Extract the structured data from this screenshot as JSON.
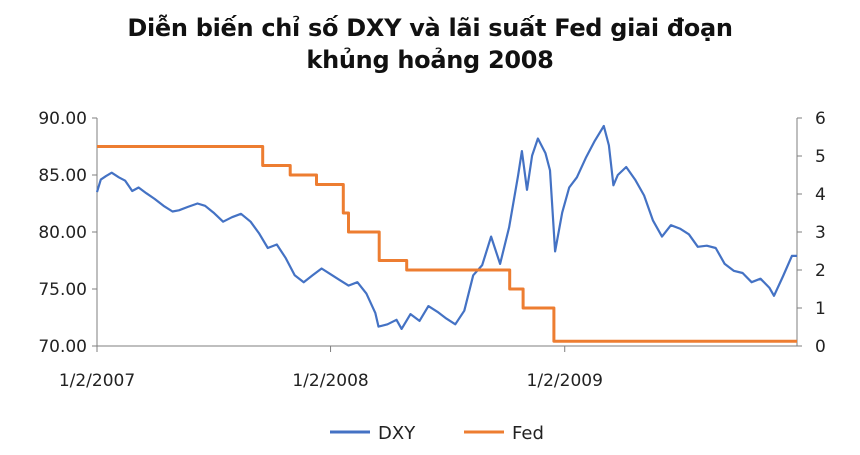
{
  "chart_data": {
    "type": "line",
    "title_line1": "Diễn biến chỉ số DXY và lãi suất Fed giai đoạn",
    "title_line2": "khủng hoảng 2008",
    "x_tick_labels": [
      "1/2/2007",
      "1/2/2008",
      "1/2/2009"
    ],
    "x_range": [
      "2007-01-02",
      "2009-12-31"
    ],
    "y_left": {
      "ticks": [
        "70.00",
        "75.00",
        "80.00",
        "85.00",
        "90.00"
      ],
      "range": [
        70,
        90
      ]
    },
    "y_right": {
      "ticks": [
        "0",
        "1",
        "2",
        "3",
        "4",
        "5",
        "6"
      ],
      "range": [
        0,
        6
      ]
    },
    "grid": false,
    "legend_position": "bottom",
    "series": [
      {
        "name": "DXY",
        "axis": "left",
        "color": "#4472C4",
        "points": [
          [
            "2007-01-02",
            83.5
          ],
          [
            "2007-01-08",
            84.6
          ],
          [
            "2007-01-16",
            84.9
          ],
          [
            "2007-01-25",
            85.2
          ],
          [
            "2007-02-05",
            84.8
          ],
          [
            "2007-02-15",
            84.5
          ],
          [
            "2007-02-26",
            83.6
          ],
          [
            "2007-03-08",
            83.9
          ],
          [
            "2007-03-20",
            83.4
          ],
          [
            "2007-04-02",
            82.9
          ],
          [
            "2007-04-16",
            82.3
          ],
          [
            "2007-04-30",
            81.8
          ],
          [
            "2007-05-10",
            81.9
          ],
          [
            "2007-05-24",
            82.2
          ],
          [
            "2007-06-08",
            82.5
          ],
          [
            "2007-06-20",
            82.3
          ],
          [
            "2007-07-03",
            81.7
          ],
          [
            "2007-07-18",
            80.9
          ],
          [
            "2007-08-01",
            81.3
          ],
          [
            "2007-08-15",
            81.6
          ],
          [
            "2007-08-30",
            80.9
          ],
          [
            "2007-09-12",
            79.9
          ],
          [
            "2007-09-26",
            78.6
          ],
          [
            "2007-10-10",
            78.9
          ],
          [
            "2007-10-24",
            77.7
          ],
          [
            "2007-11-07",
            76.2
          ],
          [
            "2007-11-21",
            75.6
          ],
          [
            "2007-12-05",
            76.2
          ],
          [
            "2007-12-19",
            76.8
          ],
          [
            "2008-01-02",
            76.3
          ],
          [
            "2008-01-16",
            75.8
          ],
          [
            "2008-01-30",
            75.3
          ],
          [
            "2008-02-13",
            75.6
          ],
          [
            "2008-02-27",
            74.6
          ],
          [
            "2008-03-12",
            72.9
          ],
          [
            "2008-03-17",
            71.7
          ],
          [
            "2008-03-31",
            71.9
          ],
          [
            "2008-04-14",
            72.3
          ],
          [
            "2008-04-22",
            71.5
          ],
          [
            "2008-05-06",
            72.8
          ],
          [
            "2008-05-20",
            72.2
          ],
          [
            "2008-06-03",
            73.5
          ],
          [
            "2008-06-17",
            73.0
          ],
          [
            "2008-07-01",
            72.4
          ],
          [
            "2008-07-15",
            71.9
          ],
          [
            "2008-07-29",
            73.1
          ],
          [
            "2008-08-12",
            76.2
          ],
          [
            "2008-08-26",
            77.1
          ],
          [
            "2008-09-09",
            79.6
          ],
          [
            "2008-09-23",
            77.2
          ],
          [
            "2008-10-07",
            80.4
          ],
          [
            "2008-10-21",
            84.9
          ],
          [
            "2008-10-27",
            87.1
          ],
          [
            "2008-11-04",
            83.7
          ],
          [
            "2008-11-12",
            86.7
          ],
          [
            "2008-11-21",
            88.2
          ],
          [
            "2008-12-03",
            86.9
          ],
          [
            "2008-12-10",
            85.4
          ],
          [
            "2008-12-18",
            78.3
          ],
          [
            "2008-12-29",
            81.7
          ],
          [
            "2009-01-09",
            83.9
          ],
          [
            "2009-01-21",
            84.8
          ],
          [
            "2009-02-04",
            86.5
          ],
          [
            "2009-02-18",
            88.0
          ],
          [
            "2009-03-04",
            89.3
          ],
          [
            "2009-03-12",
            87.6
          ],
          [
            "2009-03-19",
            84.1
          ],
          [
            "2009-03-26",
            85.0
          ],
          [
            "2009-04-08",
            85.7
          ],
          [
            "2009-04-22",
            84.6
          ],
          [
            "2009-05-06",
            83.2
          ],
          [
            "2009-05-20",
            81.0
          ],
          [
            "2009-06-03",
            79.6
          ],
          [
            "2009-06-17",
            80.6
          ],
          [
            "2009-07-01",
            80.3
          ],
          [
            "2009-07-15",
            79.8
          ],
          [
            "2009-07-29",
            78.7
          ],
          [
            "2009-08-12",
            78.8
          ],
          [
            "2009-08-26",
            78.6
          ],
          [
            "2009-09-09",
            77.2
          ],
          [
            "2009-09-23",
            76.6
          ],
          [
            "2009-10-07",
            76.4
          ],
          [
            "2009-10-21",
            75.6
          ],
          [
            "2009-11-04",
            75.9
          ],
          [
            "2009-11-18",
            75.1
          ],
          [
            "2009-11-25",
            74.4
          ],
          [
            "2009-12-09",
            76.1
          ],
          [
            "2009-12-23",
            77.9
          ],
          [
            "2009-12-31",
            77.9
          ]
        ]
      },
      {
        "name": "Fed",
        "axis": "right",
        "step": true,
        "color": "#ED7D31",
        "points": [
          [
            "2007-01-02",
            5.25
          ],
          [
            "2007-09-18",
            4.75
          ],
          [
            "2007-10-31",
            4.5
          ],
          [
            "2007-12-11",
            4.25
          ],
          [
            "2008-01-22",
            3.5
          ],
          [
            "2008-01-30",
            3.0
          ],
          [
            "2008-03-18",
            2.25
          ],
          [
            "2008-04-30",
            2.0
          ],
          [
            "2008-10-08",
            1.5
          ],
          [
            "2008-10-29",
            1.0
          ],
          [
            "2008-12-16",
            0.125
          ],
          [
            "2009-12-31",
            0.125
          ]
        ]
      }
    ]
  }
}
